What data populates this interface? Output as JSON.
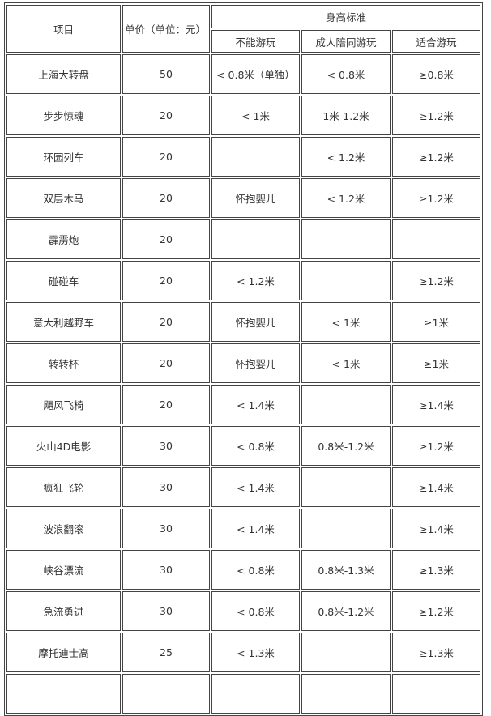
{
  "header": {
    "item": "项目",
    "price": "单价（单位：元）",
    "height_standard": "身高标准",
    "cannot_play": "不能游玩",
    "adult_accompany": "成人陪同游玩",
    "suitable": "适合游玩"
  },
  "rows": [
    {
      "item": "上海大转盘",
      "price": "50",
      "cannot": "< 0.8米（单独）",
      "accompany": "< 0.8米",
      "suitable": "≥0.8米"
    },
    {
      "item": "步步惊魂",
      "price": "20",
      "cannot": "< 1米",
      "accompany": "1米-1.2米",
      "suitable": "≥1.2米"
    },
    {
      "item": "环园列车",
      "price": "20",
      "cannot": "",
      "accompany": "< 1.2米",
      "suitable": "≥1.2米"
    },
    {
      "item": "双层木马",
      "price": "20",
      "cannot": "怀抱婴儿",
      "accompany": "< 1.2米",
      "suitable": "≥1.2米"
    },
    {
      "item": "霹雳炮",
      "price": "20",
      "cannot": "",
      "accompany": "",
      "suitable": ""
    },
    {
      "item": "碰碰车",
      "price": "20",
      "cannot": "< 1.2米",
      "accompany": "",
      "suitable": "≥1.2米"
    },
    {
      "item": "意大利越野车",
      "price": "20",
      "cannot": "怀抱婴儿",
      "accompany": "< 1米",
      "suitable": "≥1米"
    },
    {
      "item": "转转杯",
      "price": "20",
      "cannot": "怀抱婴儿",
      "accompany": "< 1米",
      "suitable": "≥1米"
    },
    {
      "item": "飓风飞椅",
      "price": "20",
      "cannot": "< 1.4米",
      "accompany": "",
      "suitable": "≥1.4米"
    },
    {
      "item": "火山4D电影",
      "price": "30",
      "cannot": "< 0.8米",
      "accompany": "0.8米-1.2米",
      "suitable": "≥1.2米"
    },
    {
      "item": "疯狂飞轮",
      "price": "30",
      "cannot": "< 1.4米",
      "accompany": "",
      "suitable": "≥1.4米"
    },
    {
      "item": "波浪翻滚",
      "price": "30",
      "cannot": "< 1.4米",
      "accompany": "",
      "suitable": "≥1.4米"
    },
    {
      "item": "峡谷漂流",
      "price": "30",
      "cannot": "< 0.8米",
      "accompany": "0.8米-1.3米",
      "suitable": "≥1.3米"
    },
    {
      "item": "急流勇进",
      "price": "30",
      "cannot": "< 0.8米",
      "accompany": "0.8米-1.2米",
      "suitable": "≥1.2米"
    },
    {
      "item": "摩托迪士高",
      "price": "25",
      "cannot": "< 1.3米",
      "accompany": "",
      "suitable": "≥1.3米"
    },
    {
      "item": "",
      "price": "",
      "cannot": "",
      "accompany": "",
      "suitable": ""
    }
  ]
}
